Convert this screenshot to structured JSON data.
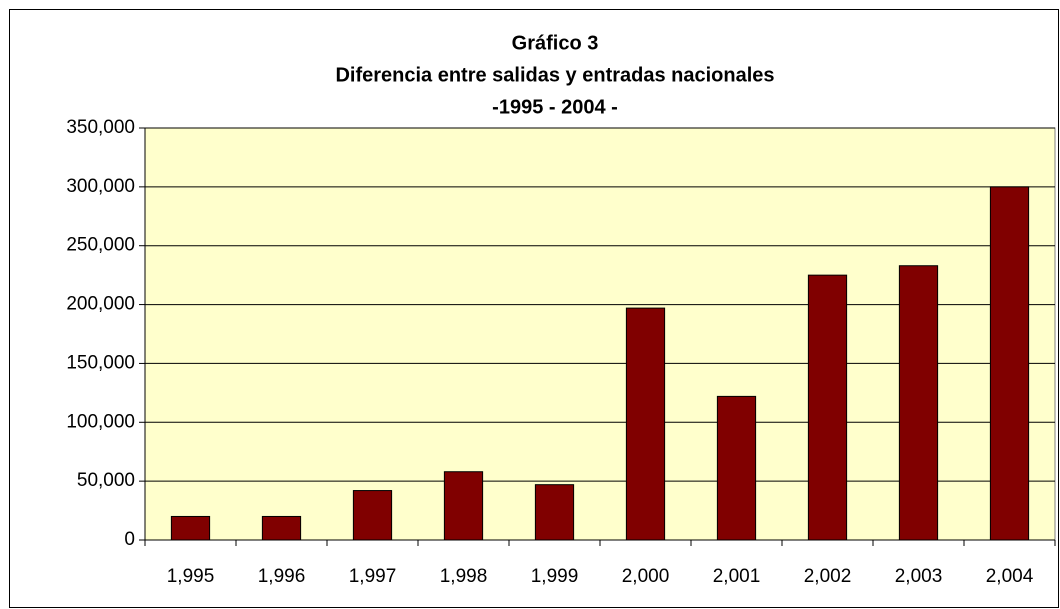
{
  "chart_data": {
    "type": "bar",
    "title": [
      "Gráfico 3",
      "Diferencia entre salidas y entradas nacionales",
      "-1995 - 2004 -"
    ],
    "categories": [
      "1,995",
      "1,996",
      "1,997",
      "1,998",
      "1,999",
      "2,000",
      "2,001",
      "2,002",
      "2,003",
      "2,004"
    ],
    "values": [
      20000,
      20000,
      42000,
      58000,
      47000,
      197000,
      122000,
      225000,
      233000,
      300000
    ],
    "color": "#800000",
    "ylim": [
      0,
      350000
    ],
    "yticks": [
      0,
      {
        "value": 50000,
        "label": "50,000"
      },
      {
        "value": 100000,
        "label": "100,000"
      },
      {
        "value": 150000,
        "label": "150,000"
      },
      {
        "value": 200000,
        "label": "200,000"
      },
      {
        "value": 250000,
        "label": "250,000"
      },
      {
        "value": 300000,
        "label": "300,000"
      },
      {
        "value": 350000,
        "label": "350,000"
      }
    ],
    "grid": true
  }
}
